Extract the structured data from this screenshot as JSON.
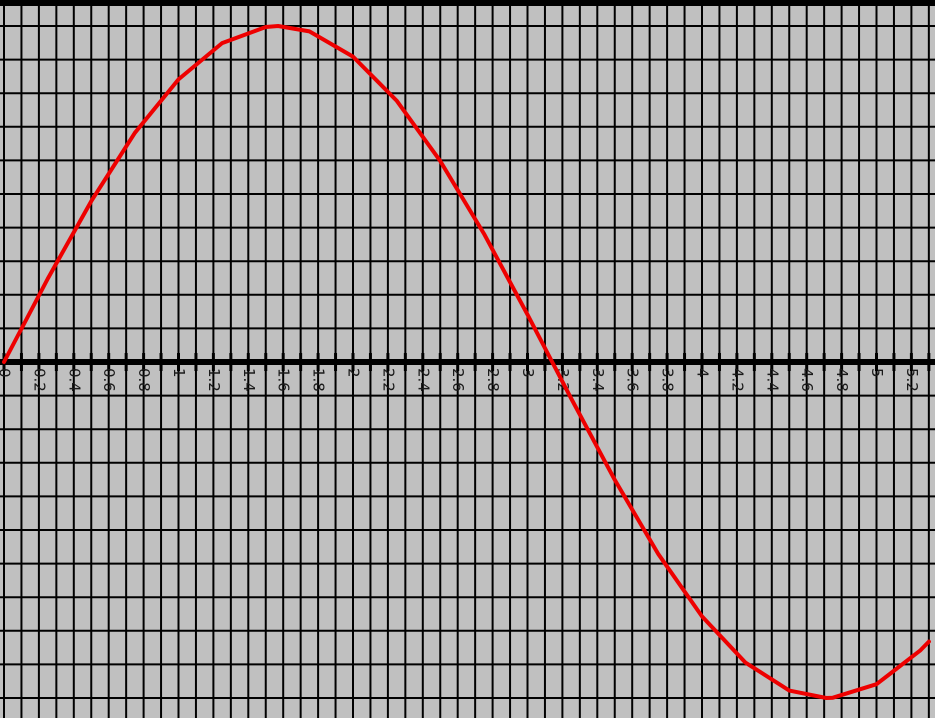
{
  "chart_data": {
    "type": "line",
    "title": "",
    "xlabel": "",
    "ylabel": "",
    "grid": true,
    "xlim": [
      0,
      5.3
    ],
    "ylim": [
      -1,
      1
    ],
    "x_tick_labels": [
      "0",
      "0.2",
      "0.4",
      "0.6",
      "0.8",
      "1",
      "1.2",
      "1.4",
      "1.6",
      "1.8",
      "2",
      "2.2",
      "2.4",
      "2.6",
      "2.8",
      "3",
      "3.2",
      "3.4",
      "3.6",
      "3.8",
      "4",
      "4.2",
      "4.4",
      "4.6",
      "4.8",
      "5",
      "5.2"
    ],
    "series": [
      {
        "color": "#ee0000",
        "x": [
          0,
          0.25,
          0.5,
          0.75,
          1.0,
          1.25,
          1.5,
          1.5708,
          1.75,
          2.0,
          2.25,
          2.5,
          2.75,
          3.0,
          3.1416,
          3.25,
          3.5,
          3.75,
          4.0,
          4.25,
          4.5,
          4.7124,
          4.75,
          5.0,
          5.25,
          5.3
        ],
        "y": [
          0,
          0.247,
          0.479,
          0.682,
          0.841,
          0.949,
          0.997,
          1.0,
          0.984,
          0.909,
          0.778,
          0.598,
          0.382,
          0.141,
          0.0,
          -0.108,
          -0.351,
          -0.572,
          -0.757,
          -0.895,
          -0.978,
          -1.0,
          -0.999,
          -0.959,
          -0.859,
          -0.832
        ]
      }
    ]
  },
  "colors": {
    "background": "#c0c0c0",
    "grid": "#000000",
    "axis": "#000000",
    "curve": "#ee0000"
  }
}
